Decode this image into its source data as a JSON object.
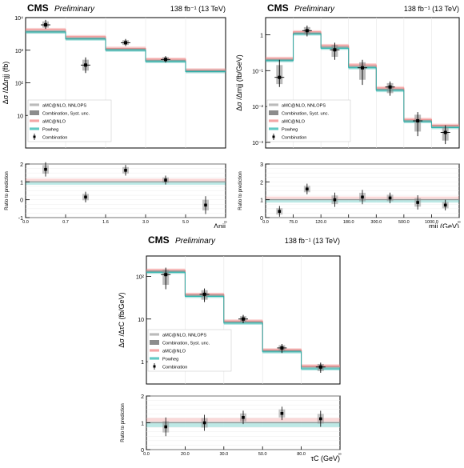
{
  "colors": {
    "amcatnlo_nnlops": "#9e9e9e",
    "syst_band": "#8c8c8c",
    "amcatnlo": "#f08080",
    "powheg": "#20b2aa",
    "combination": "#000000"
  },
  "chart_data": [
    {
      "type": "line",
      "id": "deta",
      "header": {
        "cms": "CMS",
        "preliminary": "Preliminary",
        "lumi": "138 fb⁻¹ (13 TeV)"
      },
      "ylabel": "Δσ /ΔΔηjj (fb)",
      "xlabel": "Δηjj",
      "ratio_ylabel": "Ratio to prediction",
      "log_y": true,
      "ylim": [
        1,
        10000
      ],
      "yticks": [
        {
          "value": 10000,
          "label": "10⁴"
        },
        {
          "value": 1000,
          "label": "10³"
        },
        {
          "value": 100,
          "label": "10²"
        },
        {
          "value": 10,
          "label": "10"
        }
      ],
      "x_edges": [
        0.0,
        0.7,
        1.6,
        3.0,
        5.0,
        10.0
      ],
      "x_tick_labels": [
        "0.0",
        "0.7",
        "1.6",
        "3.0",
        "5.0",
        "∞"
      ],
      "series": [
        {
          "name": "aMC@NLO, NNLOPS",
          "values": [
            3700,
            2300,
            1050,
            480,
            230
          ]
        },
        {
          "name": "aMC@NLO",
          "values": [
            4300,
            2600,
            1150,
            530,
            250
          ]
        },
        {
          "name": "Powheg",
          "values": [
            3600,
            2200,
            1000,
            450,
            220
          ]
        }
      ],
      "combination": [
        {
          "x": 0.35,
          "y": 6000,
          "ylow": 4500,
          "yhigh": 8500
        },
        {
          "x": 1.15,
          "y": 350,
          "ylow": 200,
          "yhigh": 600
        },
        {
          "x": 2.3,
          "y": 1700,
          "ylow": 1350,
          "yhigh": 2200
        },
        {
          "x": 4.0,
          "y": 520,
          "ylow": 420,
          "yhigh": 660
        },
        {
          "x": 7.5,
          "y": 0,
          "ylow": 0,
          "yhigh": 0
        }
      ],
      "ratio": {
        "ylim": [
          -1,
          2
        ],
        "yticks": [
          -1,
          0,
          1,
          2
        ],
        "points": [
          {
            "x": 0.35,
            "y": 1.7,
            "err": 0.4
          },
          {
            "x": 1.15,
            "y": 0.15,
            "err": 0.3
          },
          {
            "x": 2.3,
            "y": 1.65,
            "err": 0.3
          },
          {
            "x": 4.0,
            "y": 1.1,
            "err": 0.25
          },
          {
            "x": 7.5,
            "y": -0.3,
            "err": 0.5
          }
        ]
      },
      "legend": {
        "position": "bottom-left",
        "entries": [
          "aMC@NLO, NNLOPS",
          "Combination, Syst. unc.",
          "aMC@NLO",
          "Powheg",
          "Combination"
        ]
      }
    },
    {
      "type": "line",
      "id": "mjj",
      "header": {
        "cms": "CMS",
        "preliminary": "Preliminary",
        "lumi": "138 fb⁻¹ (13 TeV)"
      },
      "ylabel": "Δσ /Δmjj (fb/GeV)",
      "xlabel": "mjj (GeV)",
      "ratio_ylabel": "Ratio to prediction",
      "log_y": true,
      "ylim": [
        0.0007,
        3
      ],
      "yticks": [
        {
          "value": 1,
          "label": "1"
        },
        {
          "value": 0.1,
          "label": "10⁻¹"
        },
        {
          "value": 0.01,
          "label": "10⁻²"
        },
        {
          "value": 0.001,
          "label": "10⁻³"
        }
      ],
      "x_edges": [
        0,
        1,
        2,
        3,
        4,
        5,
        6,
        7
      ],
      "x_tick_labels": [
        "0.0",
        "75.0",
        "120.0",
        "180.0",
        "300.0",
        "500.0",
        "1000.0",
        "∞"
      ],
      "series": [
        {
          "name": "aMC@NLO, NNLOPS",
          "values": [
            0.2,
            1.1,
            0.45,
            0.13,
            0.03,
            0.004,
            0.0028
          ]
        },
        {
          "name": "aMC@NLO",
          "values": [
            0.22,
            1.2,
            0.5,
            0.145,
            0.033,
            0.0044,
            0.003
          ]
        },
        {
          "name": "Powheg",
          "values": [
            0.19,
            1.05,
            0.42,
            0.12,
            0.028,
            0.0038,
            0.0026
          ]
        }
      ],
      "combination": [
        {
          "x": 0.5,
          "y": 0.065,
          "ylow": 0.035,
          "yhigh": 0.2
        },
        {
          "x": 1.5,
          "y": 1.3,
          "ylow": 0.9,
          "yhigh": 1.8
        },
        {
          "x": 2.5,
          "y": 0.38,
          "ylow": 0.2,
          "yhigh": 0.6
        },
        {
          "x": 3.5,
          "y": 0.12,
          "ylow": 0.04,
          "yhigh": 0.2
        },
        {
          "x": 4.5,
          "y": 0.035,
          "ylow": 0.02,
          "yhigh": 0.05
        },
        {
          "x": 5.5,
          "y": 0.004,
          "ylow": 0.0015,
          "yhigh": 0.007
        },
        {
          "x": 6.5,
          "y": 0.0019,
          "ylow": 0.0009,
          "yhigh": 0.003
        }
      ],
      "ratio": {
        "ylim": [
          0,
          3
        ],
        "yticks": [
          0,
          1,
          2,
          3
        ],
        "points": [
          {
            "x": 0.5,
            "y": 0.35,
            "err": 0.3
          },
          {
            "x": 1.5,
            "y": 1.6,
            "err": 0.3
          },
          {
            "x": 2.5,
            "y": 1.0,
            "err": 0.4
          },
          {
            "x": 3.5,
            "y": 1.15,
            "err": 0.4
          },
          {
            "x": 4.5,
            "y": 1.1,
            "err": 0.3
          },
          {
            "x": 5.5,
            "y": 0.85,
            "err": 0.4
          },
          {
            "x": 6.5,
            "y": 0.7,
            "err": 0.3
          }
        ]
      },
      "legend": {
        "position": "bottom-left",
        "entries": [
          "aMC@NLO, NNLOPS",
          "Combination, Syst. unc.",
          "aMC@NLO",
          "Powheg",
          "Combination"
        ]
      }
    },
    {
      "type": "line",
      "id": "tauc",
      "header": {
        "cms": "CMS",
        "preliminary": "Preliminary",
        "lumi": "138 fb⁻¹ (13 TeV)"
      },
      "ylabel": "Δσ /ΔτC (fb/GeV)",
      "xlabel": "τC (GeV)",
      "ratio_ylabel": "Ratio to prediction",
      "log_y": true,
      "ylim": [
        0.3,
        300
      ],
      "yticks": [
        {
          "value": 100,
          "label": "10²"
        },
        {
          "value": 10,
          "label": "10"
        },
        {
          "value": 1,
          "label": "1"
        }
      ],
      "x_edges": [
        0,
        1,
        2,
        3,
        4,
        5
      ],
      "x_tick_labels": [
        "0.0",
        "20.0",
        "30.0",
        "50.0",
        "80.0",
        "∞"
      ],
      "series": [
        {
          "name": "aMC@NLO, NNLOPS",
          "values": [
            130,
            36,
            8.5,
            1.8,
            0.75
          ]
        },
        {
          "name": "aMC@NLO",
          "values": [
            140,
            38,
            9,
            1.9,
            0.8
          ]
        },
        {
          "name": "Powheg",
          "values": [
            125,
            34,
            8,
            1.7,
            0.68
          ]
        }
      ],
      "combination": [
        {
          "x": 0.5,
          "y": 110,
          "ylow": 50,
          "yhigh": 160
        },
        {
          "x": 1.5,
          "y": 38,
          "ylow": 25,
          "yhigh": 52
        },
        {
          "x": 2.5,
          "y": 10,
          "ylow": 8,
          "yhigh": 12.5
        },
        {
          "x": 3.5,
          "y": 2.1,
          "ylow": 1.6,
          "yhigh": 2.6
        },
        {
          "x": 4.5,
          "y": 0.75,
          "ylow": 0.55,
          "yhigh": 0.95
        }
      ],
      "ratio": {
        "ylim": [
          0,
          2
        ],
        "yticks": [
          0,
          1,
          2
        ],
        "points": [
          {
            "x": 0.5,
            "y": 0.85,
            "err": 0.35
          },
          {
            "x": 1.5,
            "y": 1.0,
            "err": 0.3
          },
          {
            "x": 2.5,
            "y": 1.2,
            "err": 0.25
          },
          {
            "x": 3.5,
            "y": 1.35,
            "err": 0.25
          },
          {
            "x": 4.5,
            "y": 1.15,
            "err": 0.3
          }
        ]
      },
      "legend": {
        "position": "bottom-left",
        "entries": [
          "aMC@NLO, NNLOPS",
          "Combination, Syst. unc.",
          "aMC@NLO",
          "Powheg",
          "Combination"
        ]
      }
    }
  ]
}
